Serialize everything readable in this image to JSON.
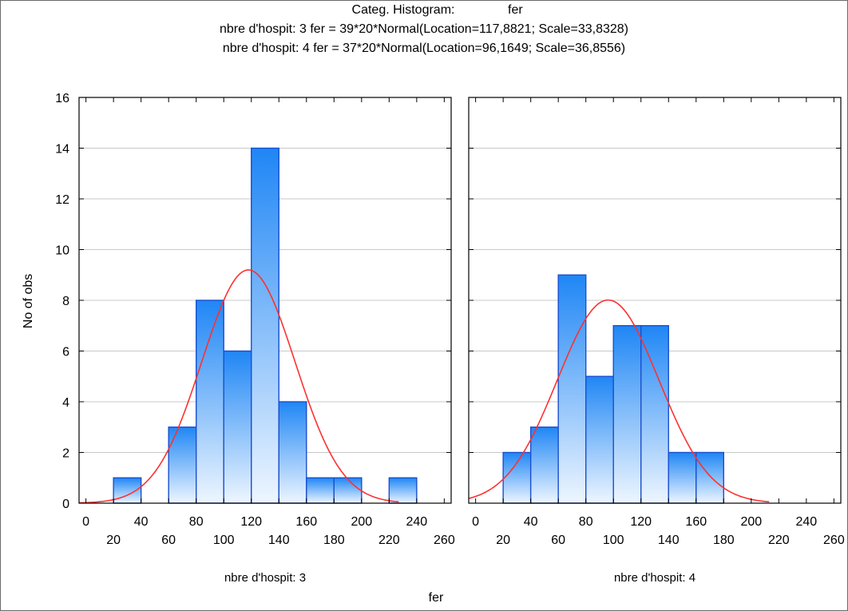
{
  "chart_data": {
    "type": "bar",
    "title": "Categ. Histogram:",
    "title_variable": "fer",
    "subtitles": [
      "nbre d'hospit: 3 fer = 39*20*Normal(Location=117,8821; Scale=33,8328)",
      "nbre d'hospit: 4 fer = 37*20*Normal(Location=96,1649; Scale=36,8556)"
    ],
    "xlabel": "fer",
    "ylabel": "No of obs",
    "xlim": [
      -5,
      265
    ],
    "ylim": [
      0,
      16
    ],
    "yticks": [
      0,
      2,
      4,
      6,
      8,
      10,
      12,
      14,
      16
    ],
    "xticks_row1": [
      0,
      40,
      80,
      120,
      160,
      200,
      240
    ],
    "xticks_row2": [
      20,
      60,
      100,
      140,
      180,
      220,
      260
    ],
    "grid": true,
    "bar_color": "#2b8cf0",
    "curve_color": "#ff3030",
    "panels": [
      {
        "label": "nbre d'hospit: 3",
        "bin_width": 20,
        "bins_start": [
          20,
          40,
          60,
          80,
          100,
          120,
          140,
          160,
          180,
          200,
          220
        ],
        "values": [
          1,
          0,
          3,
          8,
          6,
          14,
          4,
          1,
          1,
          0,
          1
        ],
        "fit": {
          "n": 39,
          "location": 117.8821,
          "scale": 33.8328
        }
      },
      {
        "label": "nbre d'hospit: 4",
        "bin_width": 20,
        "bins_start": [
          20,
          40,
          60,
          80,
          100,
          120,
          140,
          160
        ],
        "values": [
          2,
          3,
          9,
          5,
          7,
          7,
          2,
          2
        ],
        "fit": {
          "n": 37,
          "location": 96.1649,
          "scale": 36.8556
        }
      }
    ]
  }
}
